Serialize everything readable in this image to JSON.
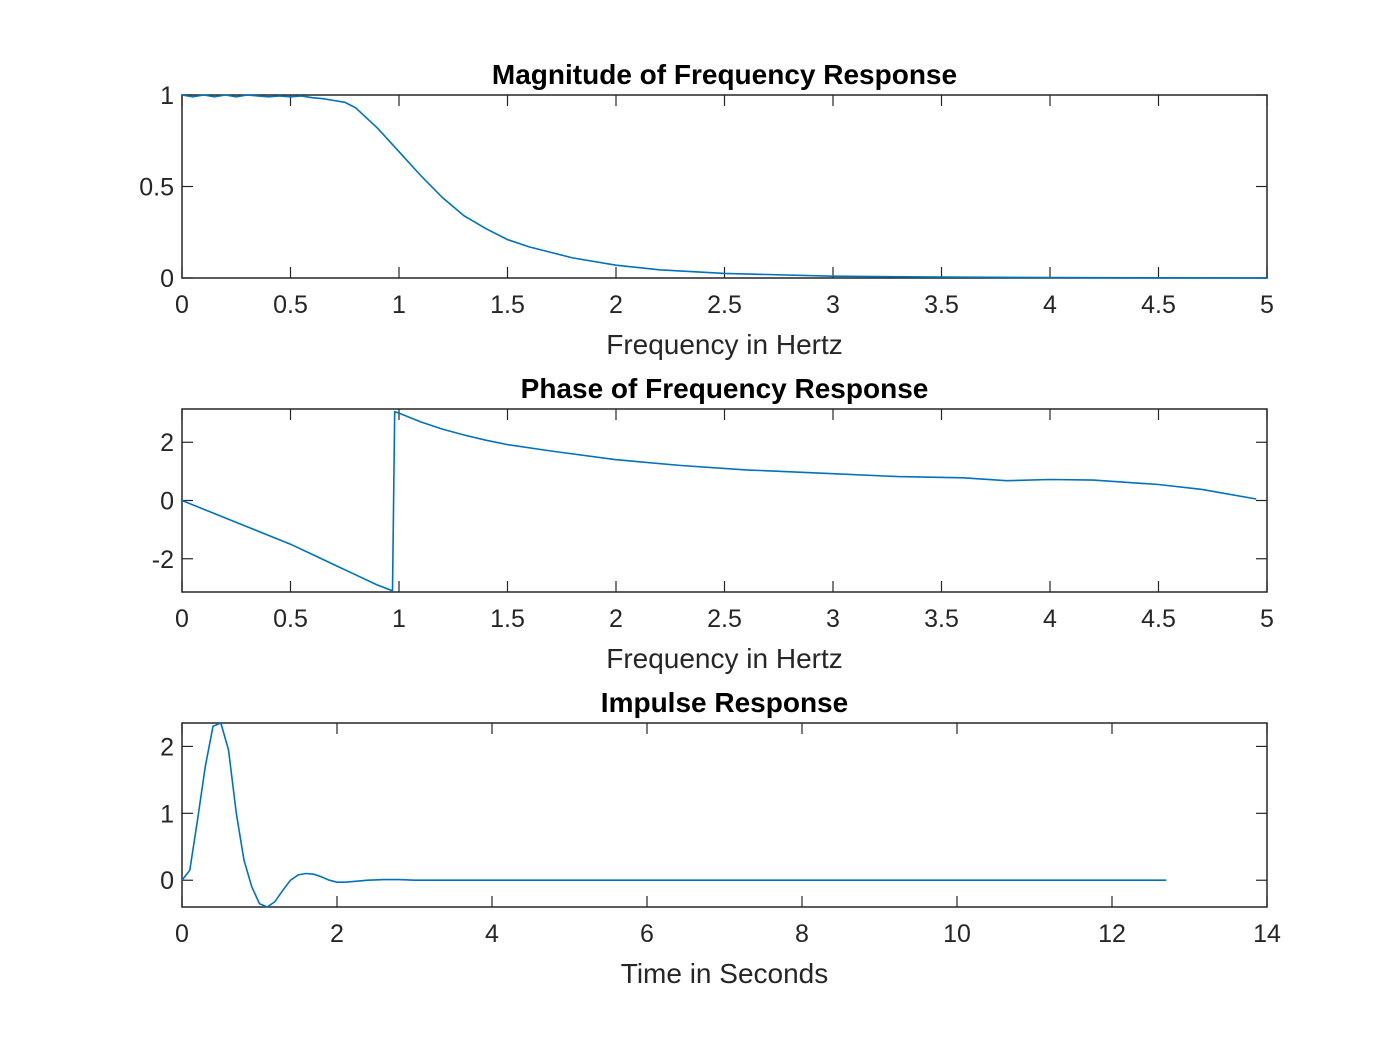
{
  "line_color": "#0072BD",
  "axis_color": "#262626",
  "chart_data": [
    {
      "type": "line",
      "title": "Magnitude of Frequency Response",
      "xlabel": "Frequency in Hertz",
      "ylabel": "",
      "xlim": [
        0,
        5
      ],
      "ylim": [
        0,
        1
      ],
      "xticks": [
        0,
        0.5,
        1,
        1.5,
        2,
        2.5,
        3,
        3.5,
        4,
        4.5,
        5
      ],
      "xtick_labels": [
        "0",
        "0.5",
        "1",
        "1.5",
        "2",
        "2.5",
        "3",
        "3.5",
        "4",
        "4.5",
        "5"
      ],
      "yticks": [
        0,
        0.5,
        1
      ],
      "ytick_labels": [
        "0",
        "0.5",
        "1"
      ],
      "grid": false,
      "series": [
        {
          "x": [
            0,
            0.05,
            0.1,
            0.15,
            0.2,
            0.25,
            0.3,
            0.35,
            0.4,
            0.45,
            0.5,
            0.55,
            0.6,
            0.65,
            0.7,
            0.75,
            0.8,
            0.9,
            1.0,
            1.1,
            1.2,
            1.3,
            1.4,
            1.5,
            1.6,
            1.7,
            1.8,
            2.0,
            2.2,
            2.5,
            3.0,
            3.5,
            4.0,
            4.5,
            5.0
          ],
          "y": [
            1.0,
            0.99,
            1.0,
            0.99,
            1.0,
            0.99,
            1.0,
            0.995,
            0.99,
            0.995,
            0.99,
            0.995,
            0.985,
            0.98,
            0.97,
            0.96,
            0.93,
            0.82,
            0.69,
            0.56,
            0.44,
            0.34,
            0.27,
            0.21,
            0.17,
            0.14,
            0.11,
            0.07,
            0.045,
            0.025,
            0.01,
            0.005,
            0.002,
            0.001,
            0.0
          ]
        }
      ]
    },
    {
      "type": "line",
      "title": "Phase of Frequency Response",
      "xlabel": "Frequency in Hertz",
      "ylabel": "",
      "xlim": [
        0,
        5
      ],
      "ylim": [
        -3.1416,
        3.1416
      ],
      "xticks": [
        0,
        0.5,
        1,
        1.5,
        2,
        2.5,
        3,
        3.5,
        4,
        4.5,
        5
      ],
      "xtick_labels": [
        "0",
        "0.5",
        "1",
        "1.5",
        "2",
        "2.5",
        "3",
        "3.5",
        "4",
        "4.5",
        "5"
      ],
      "yticks": [
        -2,
        0,
        2
      ],
      "ytick_labels": [
        "-2",
        "0",
        "2"
      ],
      "grid": false,
      "series": [
        {
          "x": [
            0,
            0.1,
            0.2,
            0.3,
            0.4,
            0.5,
            0.6,
            0.7,
            0.8,
            0.9,
            0.97,
            0.98,
            1.0,
            1.1,
            1.2,
            1.3,
            1.4,
            1.5,
            1.7,
            2.0,
            2.3,
            2.6,
            3.0,
            3.3,
            3.6,
            3.8,
            4.0,
            4.2,
            4.5,
            4.7,
            4.95
          ],
          "y": [
            0.0,
            -0.3,
            -0.6,
            -0.9,
            -1.2,
            -1.5,
            -1.85,
            -2.2,
            -2.55,
            -2.9,
            -3.1,
            3.05,
            3.0,
            2.7,
            2.45,
            2.25,
            2.07,
            1.92,
            1.7,
            1.4,
            1.2,
            1.05,
            0.92,
            0.82,
            0.78,
            0.68,
            0.72,
            0.7,
            0.55,
            0.38,
            0.05
          ]
        }
      ]
    },
    {
      "type": "line",
      "title": "Impulse Response",
      "xlabel": "Time in Seconds",
      "ylabel": "",
      "xlim": [
        0,
        14
      ],
      "ylim": [
        -0.4,
        2.35
      ],
      "xticks": [
        0,
        2,
        4,
        6,
        8,
        10,
        12,
        14
      ],
      "xtick_labels": [
        "0",
        "2",
        "4",
        "6",
        "8",
        "10",
        "12",
        "14"
      ],
      "yticks": [
        0,
        1,
        2
      ],
      "ytick_labels": [
        "0",
        "1",
        "2"
      ],
      "grid": false,
      "series": [
        {
          "x": [
            0,
            0.1,
            0.2,
            0.3,
            0.4,
            0.5,
            0.6,
            0.7,
            0.8,
            0.9,
            1.0,
            1.1,
            1.2,
            1.3,
            1.4,
            1.5,
            1.6,
            1.7,
            1.8,
            1.9,
            2.0,
            2.1,
            2.2,
            2.4,
            2.6,
            2.8,
            3.0,
            3.5,
            4.0,
            5.0,
            6.0,
            7.0,
            8.0,
            9.0,
            10.0,
            11.0,
            12.0,
            12.7
          ],
          "y": [
            0.0,
            0.15,
            0.9,
            1.7,
            2.3,
            2.35,
            1.95,
            1.0,
            0.3,
            -0.1,
            -0.35,
            -0.4,
            -0.32,
            -0.15,
            0.0,
            0.08,
            0.1,
            0.09,
            0.05,
            0.0,
            -0.03,
            -0.03,
            -0.02,
            0.0,
            0.01,
            0.01,
            0.0,
            0.0,
            0.0,
            0.0,
            0.0,
            0.0,
            0.0,
            0.0,
            0.0,
            0.0,
            0.0,
            0.0
          ]
        }
      ]
    }
  ]
}
